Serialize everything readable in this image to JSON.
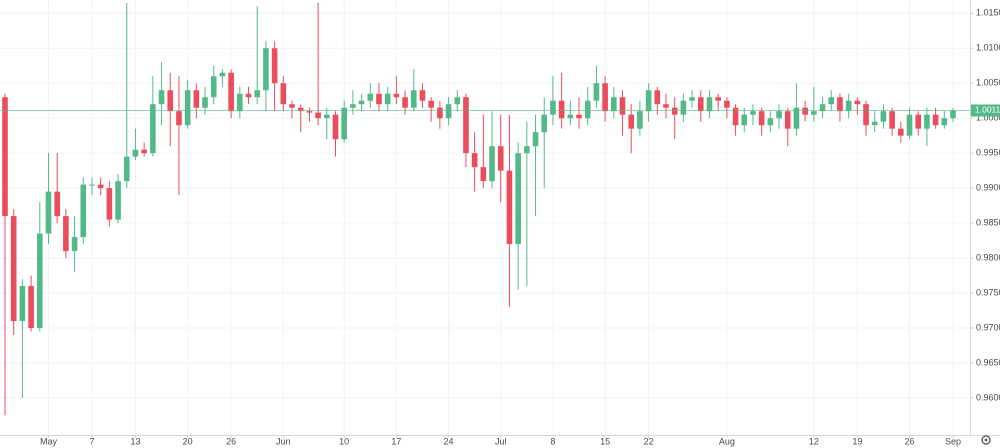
{
  "chart_data": {
    "type": "candlestick",
    "up_color": "#53b987",
    "down_color": "#eb4d5c",
    "grid": true,
    "ylim": [
      0.9547,
      1.0169
    ],
    "yticks": [
      {
        "value": 0.96,
        "label": "0.9600"
      },
      {
        "value": 0.965,
        "label": "0.9650"
      },
      {
        "value": 0.97,
        "label": "0.9700"
      },
      {
        "value": 0.975,
        "label": "0.9750"
      },
      {
        "value": 0.98,
        "label": "0.9800"
      },
      {
        "value": 0.985,
        "label": "0.9850"
      },
      {
        "value": 0.99,
        "label": "0.9900"
      },
      {
        "value": 0.995,
        "label": "0.9950"
      },
      {
        "value": 1.0,
        "label": "1.0000"
      },
      {
        "value": 1.005,
        "label": "1.0050"
      },
      {
        "value": 1.01,
        "label": "1.0100"
      },
      {
        "value": 1.015,
        "label": "1.0150"
      }
    ],
    "xticks": [
      {
        "value": 5,
        "label": "May"
      },
      {
        "value": 10,
        "label": "7"
      },
      {
        "value": 15,
        "label": "13"
      },
      {
        "value": 21,
        "label": "20"
      },
      {
        "value": 26,
        "label": "26"
      },
      {
        "value": 32,
        "label": "Jun"
      },
      {
        "value": 39,
        "label": "10"
      },
      {
        "value": 45,
        "label": "17"
      },
      {
        "value": 51,
        "label": "24"
      },
      {
        "value": 57,
        "label": "Jul"
      },
      {
        "value": 63,
        "label": "8"
      },
      {
        "value": 69,
        "label": "15"
      },
      {
        "value": 74,
        "label": "22"
      },
      {
        "value": 83,
        "label": "Aug"
      },
      {
        "value": 93,
        "label": "12"
      },
      {
        "value": 98,
        "label": "19"
      },
      {
        "value": 104,
        "label": "26"
      },
      {
        "value": 109,
        "label": "Sep"
      }
    ],
    "last_price": 1.0011,
    "open": [
      1.003,
      0.986,
      0.971,
      0.976,
      0.97,
      0.9835,
      0.9895,
      0.986,
      0.981,
      0.983,
      0.9905,
      0.9905,
      0.99,
      0.9855,
      0.991,
      0.9945,
      0.9955,
      0.995,
      1.002,
      1.004,
      1.001,
      0.999,
      1.004,
      1.0015,
      1.003,
      1.006,
      1.0065,
      1.001,
      1.0035,
      1.003,
      1.004,
      1.01,
      1.005,
      1.002,
      1.0015,
      1.001,
      1.0008,
      1.0,
      1.0005,
      0.997,
      1.0015,
      1.002,
      1.0025,
      1.0035,
      1.002,
      1.0035,
      1.003,
      1.0015,
      1.004,
      1.0025,
      1.0015,
      1.0,
      1.002,
      1.003,
      0.995,
      0.993,
      0.991,
      0.996,
      0.9925,
      0.982,
      0.995,
      0.996,
      0.998,
      1.0005,
      1.0025,
      1.0,
      1.0005,
      1.0,
      1.0025,
      1.005,
      1.001,
      1.003,
      1.0005,
      0.9985,
      1.001,
      1.004,
      1.002,
      1.0015,
      1.0005,
      1.0025,
      1.003,
      1.001,
      1.003,
      1.0025,
      1.0015,
      0.999,
      1.0005,
      1.001,
      0.999,
      1.0,
      1.001,
      0.9985,
      1.0015,
      1.0005,
      1.001,
      1.002,
      1.003,
      1.001,
      1.0025,
      1.002,
      0.999,
      0.9995,
      1.001,
      0.9985,
      0.9975,
      1.0005,
      0.9985,
      1.0005,
      0.999,
      1.0
    ],
    "close": [
      0.986,
      0.971,
      0.976,
      0.97,
      0.9835,
      0.9895,
      0.986,
      0.981,
      0.983,
      0.9905,
      0.9905,
      0.99,
      0.9855,
      0.991,
      0.9945,
      0.9955,
      0.995,
      1.002,
      1.004,
      1.001,
      0.999,
      1.004,
      1.0015,
      1.003,
      1.006,
      1.0065,
      1.001,
      1.0035,
      1.003,
      1.004,
      1.01,
      1.005,
      1.002,
      1.0015,
      1.001,
      1.0008,
      1.0,
      1.0005,
      0.997,
      1.0015,
      1.002,
      1.0025,
      1.0035,
      1.002,
      1.0035,
      1.003,
      1.0015,
      1.004,
      1.0025,
      1.0015,
      1.0,
      1.002,
      1.003,
      0.995,
      0.993,
      0.991,
      0.996,
      0.9925,
      0.982,
      0.995,
      0.996,
      0.998,
      1.0005,
      1.0025,
      1.0,
      1.0005,
      1.0,
      1.0025,
      1.005,
      1.001,
      1.003,
      1.0005,
      0.9985,
      1.001,
      1.004,
      1.002,
      1.0015,
      1.0005,
      1.0025,
      1.003,
      1.001,
      1.003,
      1.0025,
      1.0015,
      0.999,
      1.0005,
      1.001,
      0.999,
      1.0,
      1.001,
      0.9985,
      1.0015,
      1.0005,
      1.001,
      1.002,
      1.003,
      1.001,
      1.0025,
      1.002,
      0.999,
      0.9995,
      1.001,
      0.9985,
      0.9975,
      1.0005,
      0.9985,
      1.0005,
      0.999,
      1.0,
      1.0011
    ],
    "high": [
      1.0035,
      0.987,
      0.977,
      0.9775,
      0.988,
      0.995,
      0.995,
      0.987,
      0.986,
      0.9915,
      0.9915,
      0.9915,
      0.991,
      0.992,
      1.0165,
      0.9985,
      0.9965,
      1.006,
      1.008,
      1.0065,
      1.006,
      1.0055,
      1.005,
      1.0045,
      1.0075,
      1.007,
      1.007,
      1.0045,
      1.0045,
      1.016,
      1.011,
      1.011,
      1.006,
      1.0025,
      1.002,
      1.0015,
      1.0165,
      1.0015,
      1.001,
      1.0025,
      1.004,
      1.0035,
      1.005,
      1.005,
      1.0045,
      1.006,
      1.004,
      1.007,
      1.005,
      1.003,
      1.0025,
      1.003,
      1.004,
      1.0035,
      0.998,
      1.0005,
      1.001,
      1.0005,
      1.0005,
      0.9965,
      0.9995,
      1.0005,
      1.003,
      1.006,
      1.0065,
      1.0025,
      1.003,
      1.0045,
      1.0075,
      1.006,
      1.0045,
      1.004,
      1.002,
      1.0025,
      1.005,
      1.0045,
      1.0035,
      1.003,
      1.0035,
      1.004,
      1.004,
      1.004,
      1.0035,
      1.003,
      1.002,
      1.0015,
      1.002,
      1.0015,
      1.001,
      1.002,
      1.0015,
      1.005,
      1.0025,
      1.0045,
      1.003,
      1.004,
      1.0035,
      1.0035,
      1.003,
      1.0025,
      1.001,
      1.002,
      1.0015,
      0.9995,
      1.0015,
      1.001,
      1.0015,
      1.0015,
      1.001,
      1.0015
    ],
    "low": [
      0.9575,
      0.969,
      0.96,
      0.9695,
      0.9695,
      0.982,
      0.985,
      0.98,
      0.978,
      0.982,
      0.989,
      0.989,
      0.9845,
      0.985,
      0.99,
      0.994,
      0.9945,
      0.9945,
      0.999,
      0.996,
      0.989,
      0.9985,
      1.0,
      1.0005,
      1.002,
      1.0045,
      1.0,
      1.0,
      1.002,
      1.002,
      1.001,
      1.001,
      1.001,
      1.0,
      0.998,
      0.9995,
      0.999,
      0.997,
      0.9945,
      0.9965,
      1.0005,
      1.001,
      1.0015,
      1.001,
      1.001,
      1.002,
      1.0005,
      1.001,
      1.0015,
      0.9995,
      0.9985,
      0.999,
      1.001,
      0.993,
      0.9895,
      0.99,
      0.99,
      0.988,
      0.973,
      0.9755,
      0.976,
      0.986,
      0.99,
      0.999,
      0.9985,
      0.999,
      0.9985,
      0.999,
      1.0015,
      0.9995,
      1.0,
      0.9975,
      0.995,
      0.9975,
      0.9995,
      1.0005,
      1.0,
      0.997,
      0.9995,
      1.0015,
      0.9995,
      1.0,
      1.001,
      1.0,
      0.9975,
      0.998,
      0.999,
      0.9975,
      0.998,
      0.9985,
      0.996,
      0.9975,
      0.9995,
      0.9995,
      1.0,
      1.001,
      0.9995,
      1.0,
      1.0005,
      0.9975,
      0.998,
      0.9985,
      0.9975,
      0.9965,
      0.997,
      0.9975,
      0.996,
      0.9985,
      0.9985,
      0.9995
    ]
  }
}
